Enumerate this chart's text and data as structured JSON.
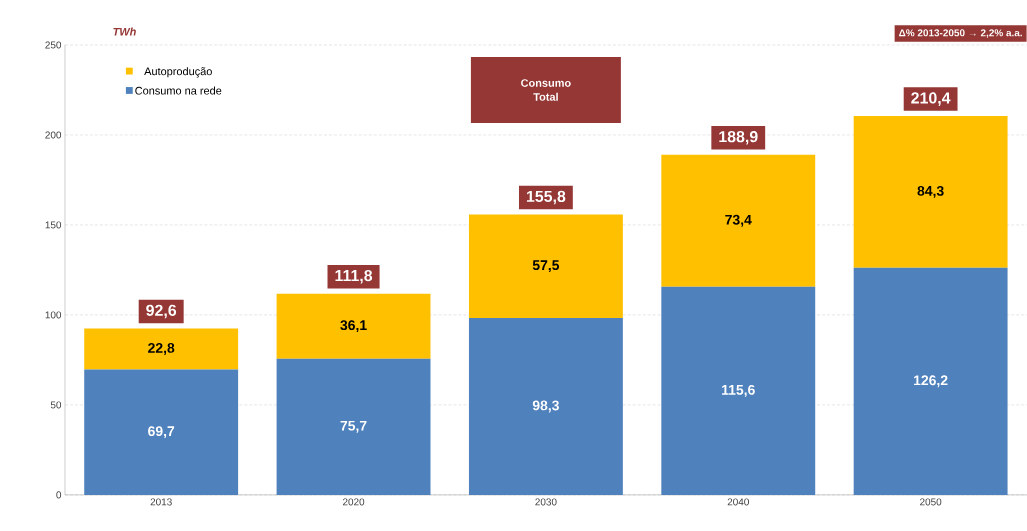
{
  "chart_data": {
    "type": "bar",
    "stacked": true,
    "ylabel": "TWh",
    "categories": [
      "2013",
      "2020",
      "2030",
      "2040",
      "2050"
    ],
    "series": [
      {
        "name": "Consumo na rede",
        "color": "#4f81bd",
        "values": [
          69.7,
          75.7,
          98.3,
          115.6,
          126.2
        ],
        "value_labels": [
          "69,7",
          "75,7",
          "98,3",
          "115,6",
          "126,2"
        ]
      },
      {
        "name": "Autoprodução",
        "color": "#ffc000",
        "values": [
          22.8,
          36.1,
          57.5,
          73.4,
          84.3
        ],
        "value_labels": [
          "22,8",
          "36,1",
          "57,5",
          "73,4",
          "84,3"
        ]
      }
    ],
    "totals": [
      "92,6",
      "111,8",
      "155,8",
      "188,9",
      "210,4"
    ],
    "annotations": [
      "Consumo Total",
      "Δ% 2013-2050 → 2,2% a.a."
    ],
    "ylim": [
      0,
      250
    ],
    "yticks": [
      0,
      50,
      100,
      150,
      200,
      250
    ],
    "grid": "y",
    "legend": "top left"
  }
}
